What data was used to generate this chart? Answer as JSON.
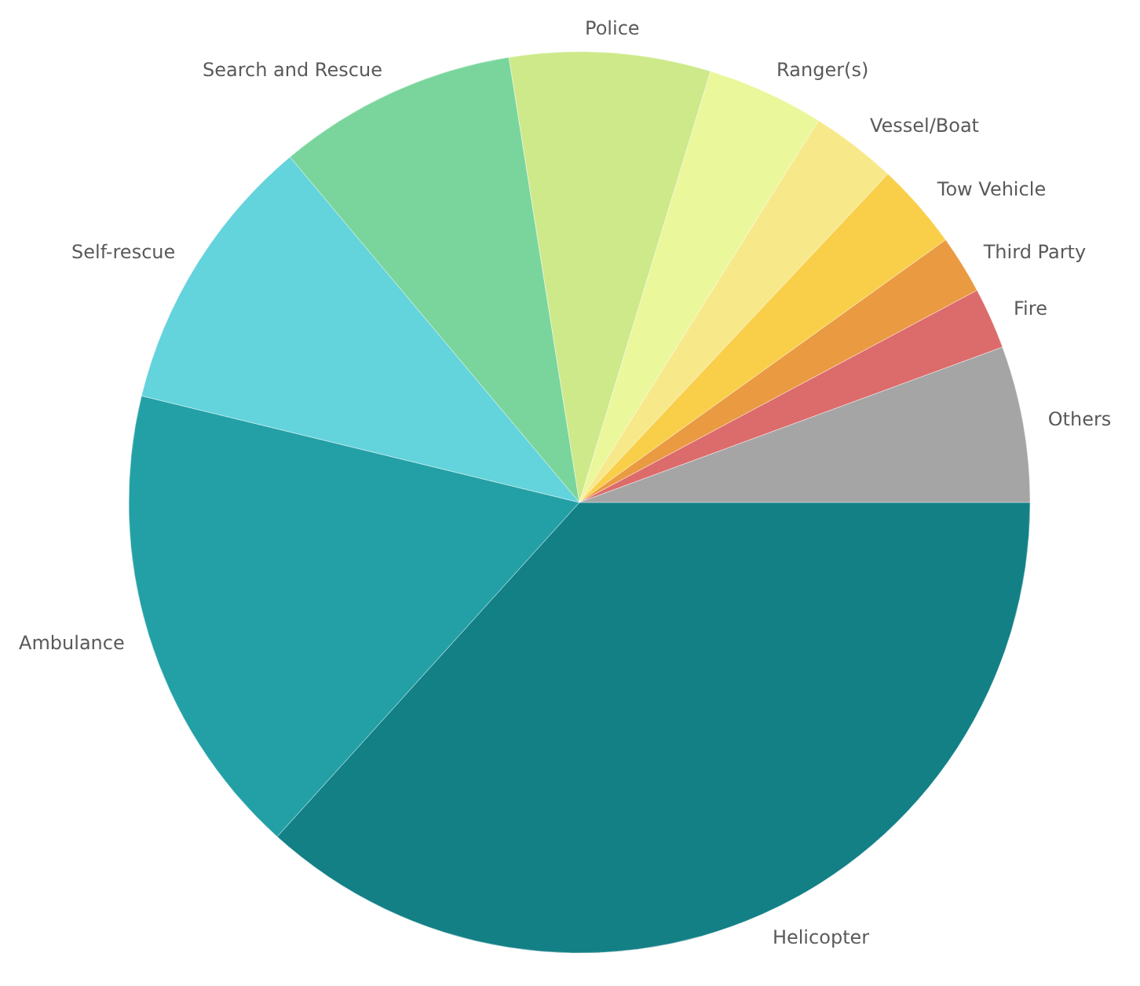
{
  "chart_data": {
    "type": "pie",
    "categories": [
      "Helicopter",
      "Ambulance",
      "Self-rescue",
      "Search and Rescue",
      "Police",
      "Ranger(s)",
      "Vessel/Boat",
      "Tow Vehicle",
      "Third Party",
      "Fire",
      "Others"
    ],
    "values": [
      36.7,
      17.1,
      10.1,
      8.6,
      7.2,
      4.2,
      3.1,
      3.1,
      2.1,
      2.2,
      5.6
    ],
    "colors": [
      "#138086",
      "#23a0a6",
      "#63d3dc",
      "#79d59c",
      "#cde98a",
      "#eaf79a",
      "#f7e98a",
      "#f9cf4a",
      "#ea9a40",
      "#dc6b6b",
      "#a5a5a5"
    ]
  }
}
